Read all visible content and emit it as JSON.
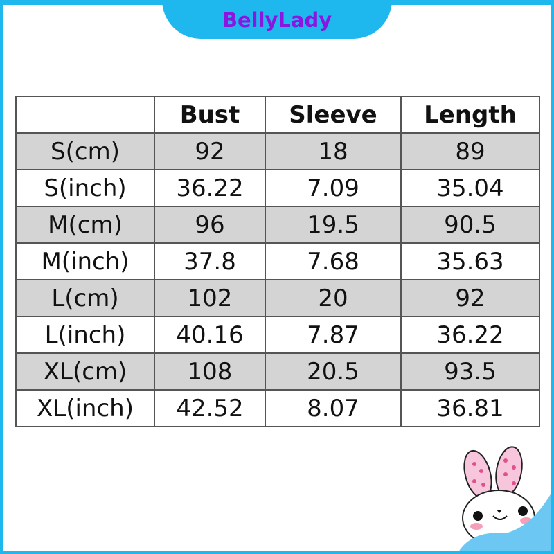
{
  "brand": {
    "name": "BellyLady",
    "tab_color": "#1fb8ee",
    "text_color": "#8a16e0"
  },
  "table": {
    "headers": [
      "",
      "Bust",
      "Sleeve",
      "Length"
    ],
    "rows": [
      [
        "S(cm)",
        "92",
        "18",
        "89"
      ],
      [
        "S(inch)",
        "36.22",
        "7.09",
        "35.04"
      ],
      [
        "M(cm)",
        "96",
        "19.5",
        "90.5"
      ],
      [
        "M(inch)",
        "37.8",
        "7.68",
        "35.63"
      ],
      [
        "L(cm)",
        "102",
        "20",
        "92"
      ],
      [
        "L(inch)",
        "40.16",
        "7.87",
        "36.22"
      ],
      [
        "XL(cm)",
        "108",
        "20.5",
        "93.5"
      ],
      [
        "XL(inch)",
        "42.52",
        "8.07",
        "36.81"
      ]
    ]
  },
  "decoration": {
    "icon": "bunny-mascot-icon"
  }
}
